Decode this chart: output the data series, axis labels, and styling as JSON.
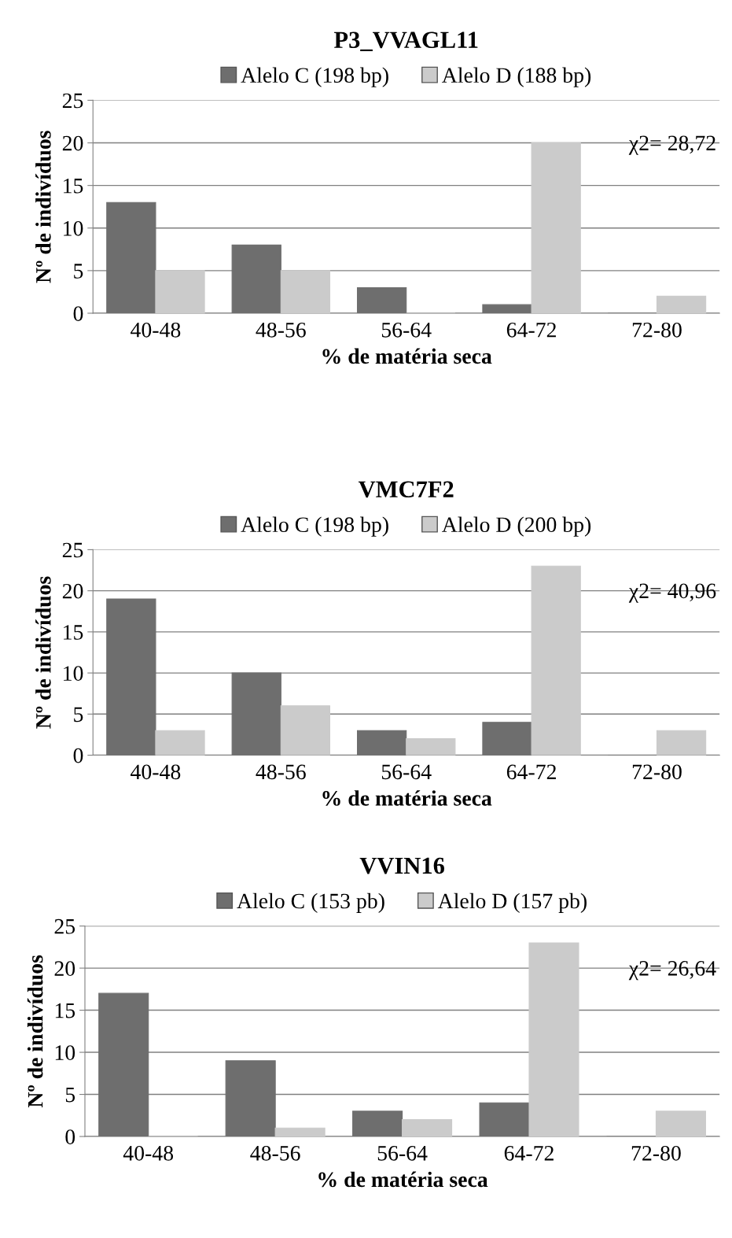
{
  "chart_data": [
    {
      "type": "bar",
      "title": "P3_VVAGL11",
      "xlabel": "% de matéria seca",
      "ylabel": "Nº de indivíduos",
      "categories": [
        "40-48",
        "48-56",
        "56-64",
        "64-72",
        "72-80"
      ],
      "series": [
        {
          "name": "Alelo C (198 bp)",
          "color": "#6e6e6e",
          "values": [
            13,
            8,
            3,
            1,
            0
          ]
        },
        {
          "name": "Alelo D (188 bp)",
          "color": "#cbcbcb",
          "values": [
            5,
            5,
            0,
            20,
            2
          ]
        }
      ],
      "ylim": [
        0,
        25
      ],
      "yticks": [
        0,
        5,
        10,
        15,
        20,
        25
      ],
      "grid": "y",
      "legend": "top",
      "annotations": [
        "χ2= 28,72"
      ]
    },
    {
      "type": "bar",
      "title": "VMC7F2",
      "xlabel": "% de matéria seca",
      "ylabel": "Nº de indivíduos",
      "categories": [
        "40-48",
        "48-56",
        "56-64",
        "64-72",
        "72-80"
      ],
      "series": [
        {
          "name": "Alelo C (198 bp)",
          "color": "#6e6e6e",
          "values": [
            19,
            10,
            3,
            4,
            0
          ]
        },
        {
          "name": "Alelo D (200 bp)",
          "color": "#cbcbcb",
          "values": [
            3,
            6,
            2,
            23,
            3
          ]
        }
      ],
      "ylim": [
        0,
        25
      ],
      "yticks": [
        0,
        5,
        10,
        15,
        20,
        25
      ],
      "grid": "y",
      "legend": "top",
      "annotations": [
        "χ2= 40,96"
      ]
    },
    {
      "type": "bar",
      "title": "VVIN16",
      "xlabel": "% de matéria seca",
      "ylabel": "Nº de indivíduos",
      "categories": [
        "40-48",
        "48-56",
        "56-64",
        "64-72",
        "72-80"
      ],
      "series": [
        {
          "name": "Alelo C (153 pb)",
          "color": "#6e6e6e",
          "values": [
            17,
            9,
            3,
            4,
            0
          ]
        },
        {
          "name": "Alelo D (157 pb)",
          "color": "#cbcbcb",
          "values": [
            0,
            1,
            2,
            23,
            3
          ]
        }
      ],
      "ylim": [
        0,
        25
      ],
      "yticks": [
        0,
        5,
        10,
        15,
        20,
        25
      ],
      "grid": "y",
      "legend": "top",
      "annotations": [
        "χ2= 26,64"
      ]
    }
  ]
}
